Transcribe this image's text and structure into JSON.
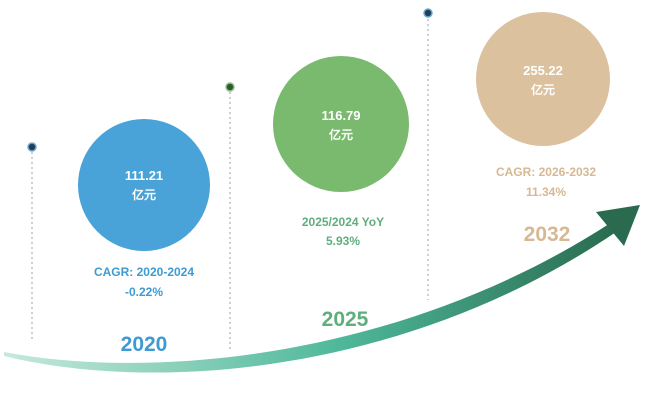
{
  "chart_data": {
    "type": "bubble-timeline",
    "unit": "亿元",
    "points": [
      {
        "year": "2020",
        "value": "111.21",
        "unit": "亿元",
        "stat_label": "CAGR: 2020-2024",
        "stat_value": "-0.22%",
        "color": "#4aa3d8",
        "text_color": "#3d9ad3"
      },
      {
        "year": "2025",
        "value": "116.79",
        "unit": "亿元",
        "stat_label": "2025/2024 YoY",
        "stat_value": "5.93%",
        "color": "#7aba6e",
        "text_color": "#5fae7d"
      },
      {
        "year": "2032",
        "value": "255.22",
        "unit": "亿元",
        "stat_label": "CAGR: 2026-2032",
        "stat_value": "11.34%",
        "color": "#dcc19e",
        "text_color": "#d6b893"
      }
    ],
    "arrow_colors": {
      "start": "#c6e9dc",
      "mid": "#4fb89a",
      "end": "#2a6b50"
    }
  }
}
